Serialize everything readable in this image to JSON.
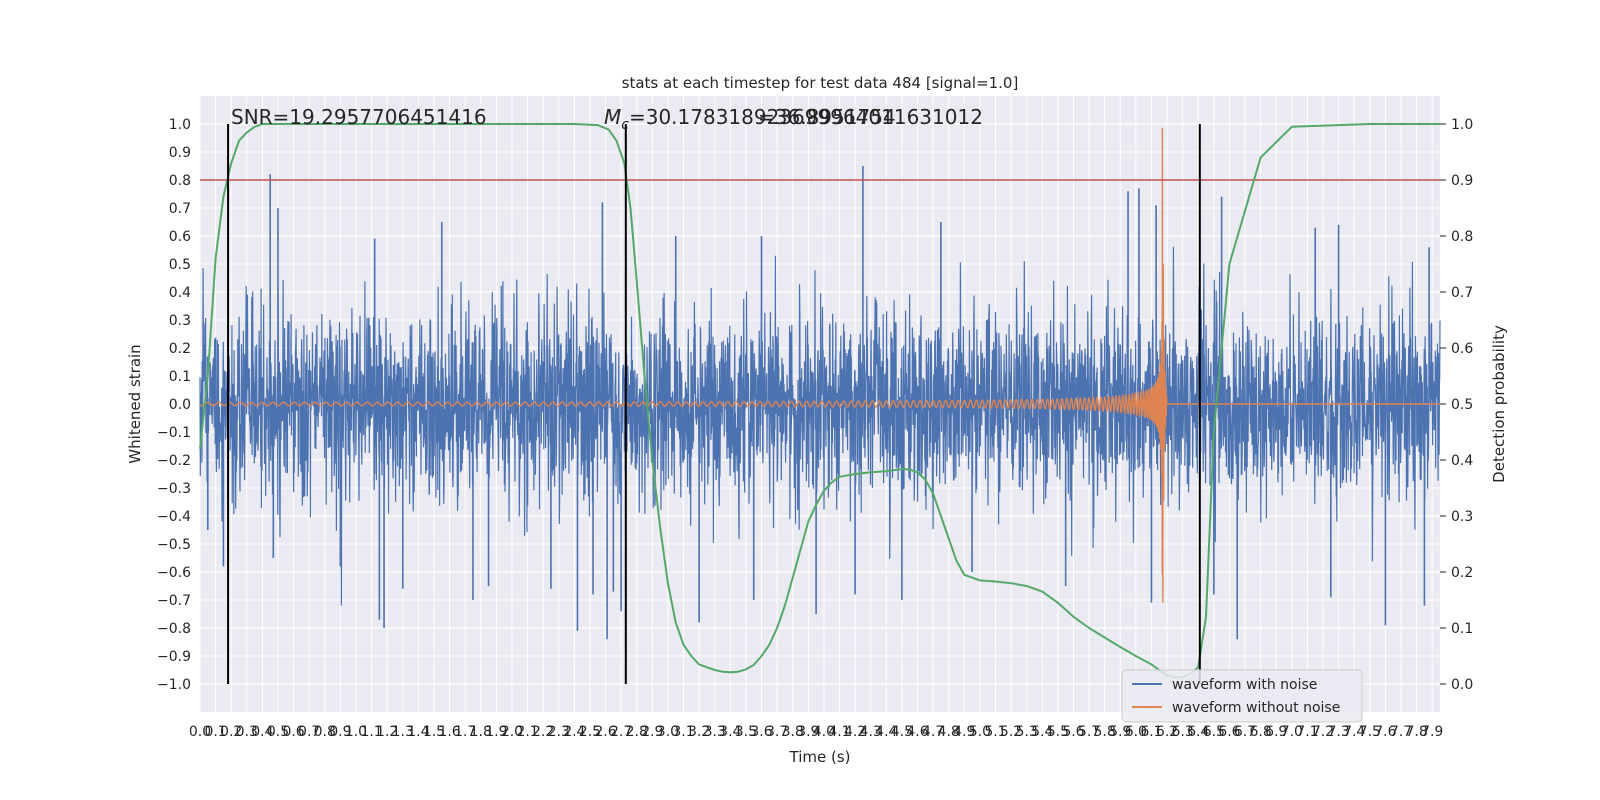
{
  "chart_data": {
    "type": "line",
    "title": "stats at each timestep for test data 484 [signal=1.0]",
    "xlabel": "Time (s)",
    "ylabel": "Whitened strain",
    "y2label": "Detection probability",
    "xlim": [
      0.0,
      7.95
    ],
    "ylim": [
      -1.1,
      1.1
    ],
    "y2lim": [
      -0.05,
      1.05
    ],
    "x_ticks": [
      0.0,
      0.1,
      0.2,
      0.3,
      0.4,
      0.5,
      0.6,
      0.7,
      0.8,
      0.9,
      1.0,
      1.1,
      1.2,
      1.3,
      1.4,
      1.5,
      1.6,
      1.7,
      1.8,
      1.9,
      2.0,
      2.1,
      2.2,
      2.3,
      2.4,
      2.5,
      2.6,
      2.7,
      2.8,
      2.9,
      3.0,
      3.1,
      3.2,
      3.3,
      3.4,
      3.5,
      3.6,
      3.7,
      3.8,
      3.9,
      4.0,
      4.1,
      4.2,
      4.3,
      4.4,
      4.5,
      4.6,
      4.7,
      4.8,
      4.9,
      5.0,
      5.1,
      5.2,
      5.3,
      5.4,
      5.5,
      5.6,
      5.7,
      5.8,
      5.9,
      6.0,
      6.1,
      6.2,
      6.3,
      6.4,
      6.5,
      6.6,
      6.7,
      6.8,
      6.9,
      7.0,
      7.1,
      7.2,
      7.3,
      7.4,
      7.5,
      7.6,
      7.7,
      7.8,
      7.9
    ],
    "x_tick_labels": [
      "0.0",
      "0.1",
      "0.2",
      "0.3",
      "0.4",
      "0.5",
      "0.6",
      "0.7",
      "0.8",
      "0.9",
      "1.0",
      "1.1",
      "1.2",
      "1.3",
      "1.4",
      "1.5",
      "1.6",
      "1.7",
      "1.8",
      "1.9",
      "2.0",
      "2.1",
      "2.2",
      "2.3",
      "2.4",
      "2.5",
      "2.6",
      "2.7",
      "2.8",
      "2.9",
      "3.0",
      "3.1",
      "3.2",
      "3.3",
      "3.4",
      "3.5",
      "3.6",
      "3.7",
      "3.8",
      "3.9",
      "4.0",
      "4.1",
      "4.2",
      "4.3",
      "4.4",
      "4.5",
      "4.6",
      "4.7",
      "4.8",
      "4.9",
      "5.0",
      "5.1",
      "5.2",
      "5.3",
      "5.4",
      "5.5",
      "5.6",
      "5.7",
      "5.8",
      "5.9",
      "6.0",
      "6.1",
      "6.2",
      "6.3",
      "6.4",
      "6.5",
      "6.6",
      "6.7",
      "6.8",
      "6.9",
      "7.0",
      "7.1",
      "7.2",
      "7.3",
      "7.4",
      "7.5",
      "7.6",
      "7.7",
      "7.8",
      "7.9"
    ],
    "y_ticks": [
      -1.0,
      -0.9,
      -0.8,
      -0.7,
      -0.6,
      -0.5,
      -0.4,
      -0.3,
      -0.2,
      -0.1,
      0.0,
      0.1,
      0.2,
      0.3,
      0.4,
      0.5,
      0.6,
      0.7,
      0.8,
      0.9,
      1.0
    ],
    "y_tick_labels": [
      "−1.0",
      "−0.9",
      "−0.8",
      "−0.7",
      "−0.6",
      "−0.5",
      "−0.4",
      "−0.3",
      "−0.2",
      "−0.1",
      "0.0",
      "0.1",
      "0.2",
      "0.3",
      "0.4",
      "0.5",
      "0.6",
      "0.7",
      "0.8",
      "0.9",
      "1.0"
    ],
    "y2_ticks": [
      0.0,
      0.1,
      0.2,
      0.3,
      0.4,
      0.5,
      0.6,
      0.7,
      0.8,
      0.9,
      1.0
    ],
    "y2_tick_labels": [
      "0.0",
      "0.1",
      "0.2",
      "0.3",
      "0.4",
      "0.5",
      "0.6",
      "0.7",
      "0.8",
      "0.9",
      "1.0"
    ],
    "grid": true,
    "legend_position": "bottom-right",
    "annotations": {
      "snr": "SNR=19.2957706451416",
      "mc_label": "M",
      "mc_sub": "c",
      "mc_value": "=30.178318923699964011631012",
      "mc_overlap": "=36.8951754"
    },
    "threshold": {
      "y2": 0.9,
      "color": "#c44e52"
    },
    "vertical_lines_x": [
      0.18,
      2.73,
      6.41
    ],
    "series": [
      {
        "name": "waveform with noise",
        "color": "#4c72b0",
        "noise_sigma": 0.17,
        "spikes": [
          [
            0.45,
            0.82
          ],
          [
            0.47,
            -0.55
          ],
          [
            0.15,
            -0.58
          ],
          [
            0.05,
            -0.45
          ],
          [
            0.5,
            0.7
          ],
          [
            0.9,
            -0.58
          ],
          [
            1.15,
            -0.77
          ],
          [
            1.18,
            -0.8
          ],
          [
            1.12,
            0.59
          ],
          [
            1.3,
            -0.66
          ],
          [
            1.55,
            0.65
          ],
          [
            1.75,
            -0.7
          ],
          [
            1.85,
            -0.65
          ],
          [
            2.25,
            -0.66
          ],
          [
            2.42,
            -0.81
          ],
          [
            2.52,
            -0.68
          ],
          [
            2.58,
            0.72
          ],
          [
            2.61,
            -0.84
          ],
          [
            2.7,
            -0.74
          ],
          [
            2.65,
            -0.67
          ],
          [
            3.05,
            0.6
          ],
          [
            3.2,
            -0.78
          ],
          [
            3.55,
            -0.7
          ],
          [
            3.6,
            0.6
          ],
          [
            3.95,
            -0.75
          ],
          [
            4.2,
            -0.68
          ],
          [
            4.25,
            0.85
          ],
          [
            4.5,
            -0.7
          ],
          [
            4.75,
            0.65
          ],
          [
            4.95,
            -0.6
          ],
          [
            5.55,
            -0.65
          ],
          [
            5.95,
            0.76
          ],
          [
            6.02,
            0.77
          ],
          [
            6.1,
            -0.71
          ],
          [
            6.13,
            0.71
          ],
          [
            6.5,
            -0.68
          ],
          [
            6.55,
            0.74
          ],
          [
            6.65,
            -0.84
          ],
          [
            7.15,
            0.63
          ],
          [
            7.25,
            -0.69
          ],
          [
            7.3,
            0.64
          ],
          [
            7.6,
            -0.79
          ],
          [
            7.85,
            -0.72
          ],
          [
            7.88,
            0.56
          ]
        ]
      },
      {
        "name": "waveform without noise",
        "color": "#dd8452",
        "chirp": {
          "merger_time": 6.17,
          "peak_amplitude": 1.0,
          "ringdown_end": 6.2
        }
      },
      {
        "name": "detection probability",
        "color": "#55a868",
        "axis": "right",
        "x": [
          0.0,
          0.05,
          0.1,
          0.15,
          0.2,
          0.25,
          0.3,
          0.35,
          0.4,
          0.5,
          0.6,
          1.0,
          1.5,
          2.0,
          2.4,
          2.55,
          2.62,
          2.67,
          2.72,
          2.76,
          2.8,
          2.85,
          2.9,
          2.95,
          3.0,
          3.05,
          3.1,
          3.15,
          3.2,
          3.3,
          3.35,
          3.4,
          3.45,
          3.5,
          3.55,
          3.6,
          3.65,
          3.7,
          3.75,
          3.8,
          3.85,
          3.9,
          3.95,
          4.0,
          4.05,
          4.1,
          4.2,
          4.3,
          4.4,
          4.45,
          4.5,
          4.55,
          4.6,
          4.65,
          4.7,
          4.75,
          4.8,
          4.85,
          4.9,
          5.0,
          5.1,
          5.2,
          5.3,
          5.4,
          5.5,
          5.6,
          5.7,
          5.8,
          5.9,
          6.0,
          6.1,
          6.15,
          6.2,
          6.25,
          6.3,
          6.35,
          6.4,
          6.45,
          6.5,
          6.6,
          6.8,
          7.0,
          7.5,
          7.95
        ],
        "values": [
          0.42,
          0.55,
          0.76,
          0.87,
          0.93,
          0.97,
          0.985,
          0.995,
          1.0,
          1.0,
          1.0,
          1.0,
          1.0,
          1.0,
          1.0,
          0.998,
          0.99,
          0.97,
          0.93,
          0.85,
          0.72,
          0.55,
          0.4,
          0.28,
          0.18,
          0.11,
          0.07,
          0.05,
          0.035,
          0.025,
          0.022,
          0.021,
          0.022,
          0.026,
          0.034,
          0.05,
          0.07,
          0.1,
          0.14,
          0.19,
          0.24,
          0.29,
          0.32,
          0.345,
          0.36,
          0.37,
          0.375,
          0.378,
          0.38,
          0.382,
          0.384,
          0.383,
          0.378,
          0.365,
          0.34,
          0.3,
          0.26,
          0.22,
          0.195,
          0.185,
          0.183,
          0.18,
          0.175,
          0.165,
          0.145,
          0.12,
          0.1,
          0.083,
          0.066,
          0.05,
          0.035,
          0.025,
          0.015,
          0.012,
          0.012,
          0.018,
          0.03,
          0.12,
          0.45,
          0.75,
          0.94,
          0.995,
          1.0,
          1.0
        ]
      }
    ]
  }
}
